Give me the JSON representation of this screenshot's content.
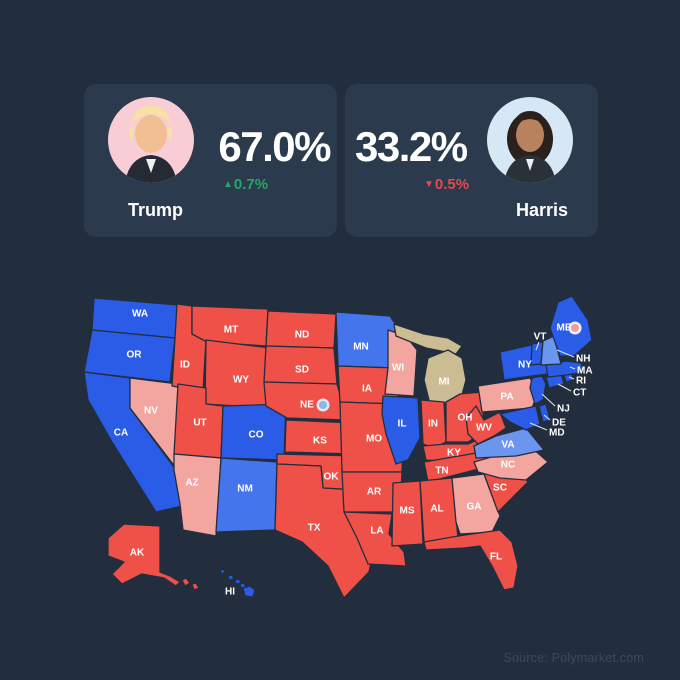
{
  "page": {
    "background": "#222E3E",
    "source_note": "Source: Polymarket.com"
  },
  "candidates": [
    {
      "name": "Trump",
      "percent": "67.0%",
      "change": "0.7%",
      "direction": "up",
      "arrow": "▲",
      "change_color": "#2BA568",
      "avatar_bg": "#F9CDD6"
    },
    {
      "name": "Harris",
      "percent": "33.2%",
      "change": "0.5%",
      "direction": "down",
      "arrow": "▼",
      "change_color": "#E9484E",
      "avatar_bg": "#D6E8F6"
    }
  ],
  "map": {
    "colors": {
      "red": "#EF5148",
      "pink": "#F3A5A0",
      "blue": "#2A5CE8",
      "blue_mid": "#4575EC",
      "blue_light": "#6C95F0",
      "tan": "#CBBC93",
      "border": "#222E3E",
      "label": "#FFFFFF",
      "callout_line": "#D9E2EA"
    },
    "states": [
      {
        "id": "WA",
        "fill": "blue"
      },
      {
        "id": "OR",
        "fill": "blue"
      },
      {
        "id": "CA",
        "fill": "blue"
      },
      {
        "id": "NV",
        "fill": "pink"
      },
      {
        "id": "ID",
        "fill": "red"
      },
      {
        "id": "MT",
        "fill": "red"
      },
      {
        "id": "WY",
        "fill": "red"
      },
      {
        "id": "UT",
        "fill": "red"
      },
      {
        "id": "CO",
        "fill": "blue"
      },
      {
        "id": "AZ",
        "fill": "pink"
      },
      {
        "id": "NM",
        "fill": "blue_mid"
      },
      {
        "id": "ND",
        "fill": "red"
      },
      {
        "id": "SD",
        "fill": "red"
      },
      {
        "id": "NE",
        "fill": "red"
      },
      {
        "id": "KS",
        "fill": "red"
      },
      {
        "id": "OK",
        "fill": "red"
      },
      {
        "id": "TX",
        "fill": "red"
      },
      {
        "id": "MN",
        "fill": "blue_mid"
      },
      {
        "id": "IA",
        "fill": "red"
      },
      {
        "id": "MO",
        "fill": "red"
      },
      {
        "id": "AR",
        "fill": "red"
      },
      {
        "id": "LA",
        "fill": "red"
      },
      {
        "id": "WI",
        "fill": "pink"
      },
      {
        "id": "IL",
        "fill": "blue"
      },
      {
        "id": "MI",
        "fill": "tan"
      },
      {
        "id": "IN",
        "fill": "red"
      },
      {
        "id": "OH",
        "fill": "red"
      },
      {
        "id": "KY",
        "fill": "red"
      },
      {
        "id": "TN",
        "fill": "red"
      },
      {
        "id": "MS",
        "fill": "red"
      },
      {
        "id": "AL",
        "fill": "red"
      },
      {
        "id": "GA",
        "fill": "pink"
      },
      {
        "id": "FL",
        "fill": "red"
      },
      {
        "id": "SC",
        "fill": "red"
      },
      {
        "id": "NC",
        "fill": "pink"
      },
      {
        "id": "VA",
        "fill": "blue_light"
      },
      {
        "id": "WV",
        "fill": "red"
      },
      {
        "id": "PA",
        "fill": "pink"
      },
      {
        "id": "NY",
        "fill": "blue"
      },
      {
        "id": "MD",
        "fill": "blue"
      },
      {
        "id": "DE",
        "fill": "blue"
      },
      {
        "id": "NJ",
        "fill": "blue"
      },
      {
        "id": "CT",
        "fill": "blue"
      },
      {
        "id": "RI",
        "fill": "blue"
      },
      {
        "id": "MA",
        "fill": "blue"
      },
      {
        "id": "VT",
        "fill": "blue"
      },
      {
        "id": "NH",
        "fill": "blue_light"
      },
      {
        "id": "ME",
        "fill": "blue"
      },
      {
        "id": "AK",
        "fill": "red"
      },
      {
        "id": "HI",
        "fill": "blue"
      }
    ],
    "markers": [
      {
        "state": "NE",
        "ring": "#DFE7EF",
        "fill": "#8FB4EC"
      },
      {
        "state": "ME",
        "ring": "#EFF2F5",
        "fill": "#EF9BA4"
      }
    ]
  }
}
